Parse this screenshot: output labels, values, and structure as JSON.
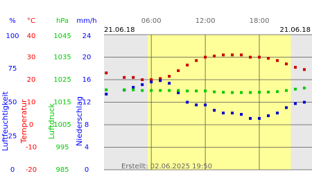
{
  "chart_data": {
    "type": "scatter",
    "date_left": "21.06.18",
    "date_right": "21.06.18",
    "footer": "Erstellt: 02.06.2025 19:50",
    "xlim": [
      0.75,
      23.85
    ],
    "xticks": [
      {
        "value": 6,
        "label": "06:00"
      },
      {
        "value": 12,
        "label": "12:00"
      },
      {
        "value": 18,
        "label": "18:00"
      }
    ],
    "daylight": [
      5.6,
      21.5
    ],
    "grid": true,
    "axes": [
      {
        "unit": "%",
        "label": "Luftfeuchtigkeit",
        "color": "#0000ff",
        "ylim": [
          0,
          100
        ],
        "yticks": [
          0,
          25,
          50,
          75,
          100
        ]
      },
      {
        "unit": "°C",
        "label": "Temperatur",
        "color": "#ff0000",
        "ylim": [
          -20,
          40
        ],
        "yticks": [
          -20,
          -10,
          0,
          10,
          20,
          30,
          40
        ]
      },
      {
        "unit": "hPa",
        "label": "Luftdruck",
        "color": "#00cc00",
        "ylim": [
          985,
          1045
        ],
        "yticks": [
          985,
          995,
          1005,
          1015,
          1025,
          1035,
          1045
        ]
      },
      {
        "unit": "mm/h",
        "label": "Niederschlag",
        "color": "#0000ff",
        "ylim": [
          0,
          24
        ],
        "yticks": [
          0,
          4,
          8,
          12,
          16,
          20,
          24
        ]
      }
    ],
    "x": [
      1,
      2,
      3,
      4,
      5,
      6,
      7,
      8,
      9,
      10,
      11,
      12,
      13,
      14,
      15,
      16,
      17,
      18,
      19,
      20,
      21,
      22,
      23
    ],
    "series": [
      {
        "axis": 1,
        "color": "#cc0000",
        "values": [
          23,
          null,
          21,
          21,
          20,
          20,
          20.5,
          21.5,
          24,
          26.5,
          28.5,
          30,
          30.5,
          31,
          31,
          31,
          30,
          30,
          29.5,
          28.5,
          27,
          25.5,
          24.5
        ]
      },
      {
        "axis": 0,
        "color": "#0000cc",
        "values": [
          56,
          null,
          59,
          61,
          63,
          65,
          66,
          64,
          57,
          50,
          48,
          48,
          44,
          42,
          42,
          41,
          38,
          38,
          40,
          42,
          46,
          49,
          50
        ]
      },
      {
        "axis": 2,
        "color": "#00cc00",
        "values": [
          1020.5,
          null,
          1020.5,
          1020.5,
          1020.2,
          1020.2,
          1020.2,
          1020.2,
          1020.2,
          1020,
          1020,
          1020,
          1019.6,
          1019.4,
          1019.3,
          1019.3,
          1019.3,
          1019.4,
          1019.5,
          1019.7,
          1020.2,
          1020.8,
          1021.3
        ]
      }
    ]
  }
}
